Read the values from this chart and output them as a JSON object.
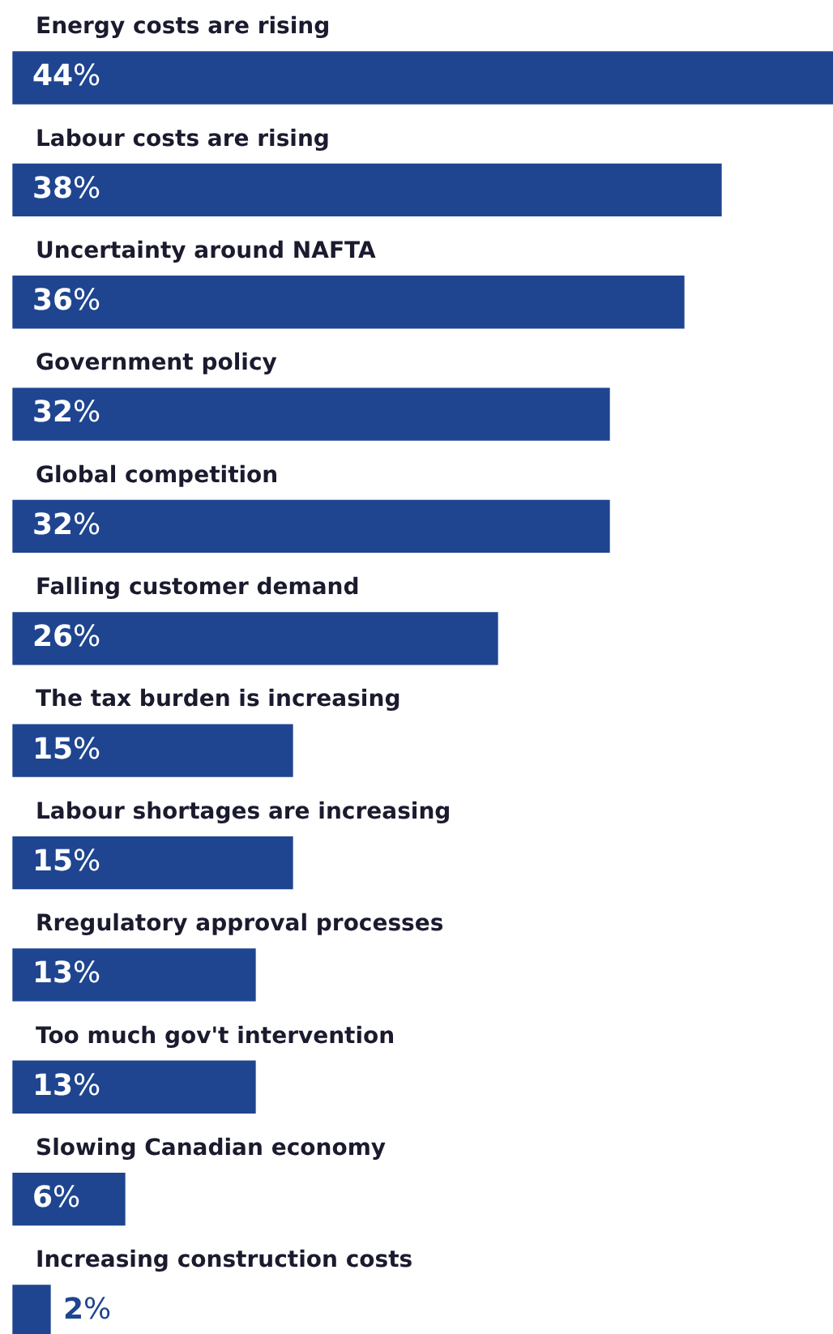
{
  "chart_data": {
    "type": "bar",
    "orientation": "horizontal",
    "categories": [
      "Energy costs are rising",
      "Labour costs are rising",
      "Uncertainty around NAFTA",
      "Government policy",
      "Global competition",
      "Falling customer demand",
      "The tax burden is increasing",
      "Labour shortages are increasing",
      "Rregulatory approval processes",
      "Too much gov't intervention",
      "Slowing Canadian economy",
      "Increasing construction costs"
    ],
    "values": [
      44,
      38,
      36,
      32,
      32,
      26,
      15,
      15,
      13,
      13,
      6,
      2
    ],
    "value_labels": [
      "44%",
      "38%",
      "36%",
      "32%",
      "32%",
      "26%",
      "15%",
      "15%",
      "13%",
      "13%",
      "6%",
      "2%"
    ],
    "color": "#1f4590",
    "legend": false
  }
}
